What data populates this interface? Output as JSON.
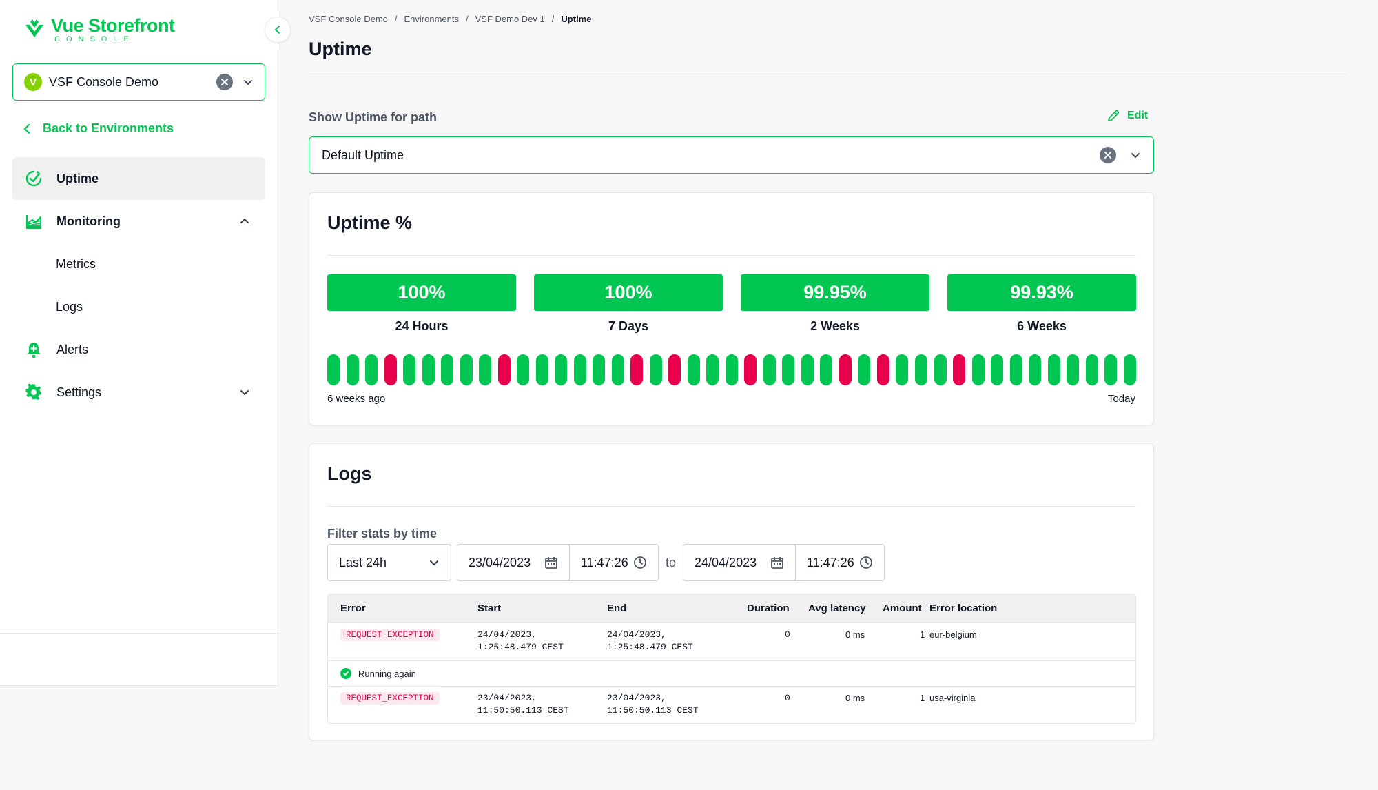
{
  "brand": {
    "name": "Vue Storefront",
    "sub": "CONSOLE"
  },
  "project": {
    "avatar": "V",
    "name": "VSF Console Demo"
  },
  "back_link": "Back to Environments",
  "nav": {
    "uptime": "Uptime",
    "monitoring": "Monitoring",
    "metrics": "Metrics",
    "logs": "Logs",
    "alerts": "Alerts",
    "settings": "Settings"
  },
  "breadcrumb": [
    "VSF Console Demo",
    "Environments",
    "VSF Demo Dev 1",
    "Uptime"
  ],
  "page_title": "Uptime",
  "path_filter": {
    "label": "Show Uptime for path",
    "edit": "Edit",
    "value": "Default Uptime"
  },
  "uptime": {
    "title": "Uptime %",
    "stats": [
      {
        "value": "100%",
        "label": "24 Hours"
      },
      {
        "value": "100%",
        "label": "7 Days"
      },
      {
        "value": "99.95%",
        "label": "2 Weeks"
      },
      {
        "value": "99.93%",
        "label": "6 Weeks"
      }
    ],
    "history": [
      1,
      1,
      1,
      0,
      1,
      1,
      1,
      1,
      1,
      0,
      1,
      1,
      1,
      1,
      1,
      1,
      0,
      1,
      0,
      1,
      1,
      1,
      0,
      1,
      1,
      1,
      1,
      0,
      1,
      0,
      1,
      1,
      1,
      0,
      1,
      1,
      1,
      1,
      1,
      1,
      1,
      1,
      1
    ],
    "range_start": "6 weeks ago",
    "range_end": "Today",
    "colors": {
      "up": "#02c652",
      "down": "#e8004c"
    }
  },
  "logs": {
    "title": "Logs",
    "filter_label": "Filter stats by time",
    "range": "Last 24h",
    "from_date": "23/04/2023",
    "from_time": "11:47:26",
    "to_label": "to",
    "to_date": "24/04/2023",
    "to_time": "11:47:26",
    "columns": [
      "Error",
      "Start",
      "End",
      "Duration",
      "Avg latency",
      "Amount",
      "Error location"
    ],
    "rows": [
      {
        "error": "REQUEST_EXCEPTION",
        "start1": "24/04/2023,",
        "start2": "1:25:48.479 CEST",
        "end1": "24/04/2023,",
        "end2": "1:25:48.479 CEST",
        "duration": "0",
        "latency": "0 ms",
        "amount": "1",
        "location": "eur-belgium"
      },
      {
        "error": "REQUEST_EXCEPTION",
        "start1": "23/04/2023,",
        "start2": "11:50:50.113 CEST",
        "end1": "23/04/2023,",
        "end2": "11:50:50.113 CEST",
        "duration": "0",
        "latency": "0 ms",
        "amount": "1",
        "location": "usa-virginia"
      }
    ],
    "running_again": "Running again"
  },
  "theme": {
    "accent": "#02c652",
    "danger": "#e8004c"
  }
}
